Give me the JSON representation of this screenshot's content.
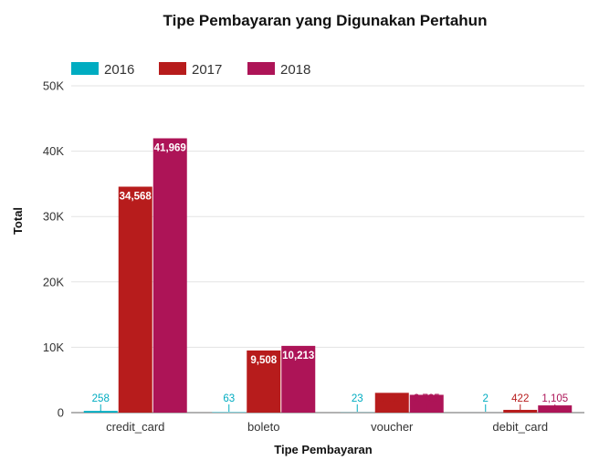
{
  "chart_data": {
    "type": "bar",
    "title": "Tipe Pembayaran yang Digunakan Pertahun",
    "xlabel": "Tipe Pembayaran",
    "ylabel": "Total",
    "categories": [
      "credit_card",
      "boleto",
      "voucher",
      "debit_card"
    ],
    "series": [
      {
        "name": "2016",
        "color": "#00acc1",
        "values": [
          258,
          63,
          23,
          2
        ],
        "labels": [
          "258",
          "63",
          "23",
          "2"
        ]
      },
      {
        "name": "2017",
        "color": "#b71c1c",
        "values": [
          34568,
          9508,
          3027,
          422
        ],
        "labels": [
          "34,568",
          "9,508",
          "3,027",
          "422"
        ]
      },
      {
        "name": "2018",
        "color": "#ad1457",
        "values": [
          41969,
          10213,
          2725,
          1105
        ],
        "labels": [
          "41,969",
          "10,213",
          "2,725",
          "1,105"
        ]
      }
    ],
    "ylim": [
      0,
      50000
    ],
    "yticks": [
      0,
      10000,
      20000,
      30000,
      40000,
      50000
    ],
    "ytick_labels": [
      "0",
      "10K",
      "20K",
      "30K",
      "40K",
      "50K"
    ],
    "grid": true,
    "legend_position": "top-left"
  }
}
